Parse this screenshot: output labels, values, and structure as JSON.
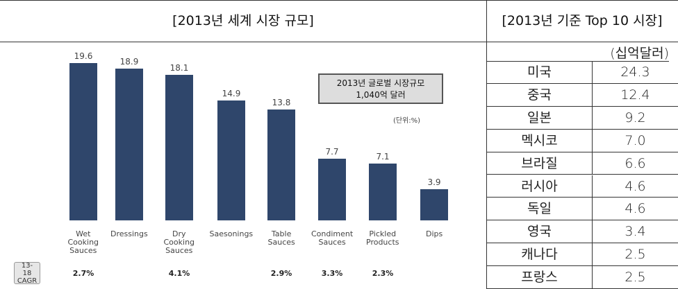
{
  "chart_data": {
    "type": "bar",
    "title": "[2013년 세계 시장 규모]",
    "categories": [
      "Wet Cooking Sauces",
      "Dressings",
      "Dry Cooking Sauces",
      "Saesonings",
      "Table Sauces",
      "Condiment Sauces",
      "Pickled Products",
      "Dips"
    ],
    "values": [
      19.6,
      18.9,
      18.1,
      14.9,
      13.8,
      7.7,
      7.1,
      3.9
    ],
    "color": "#2f466b",
    "annotation": [
      "2013년 글로벌 시장규모",
      "1,040억 달러"
    ],
    "unit_note": "(단위:%)",
    "cagr_label": "13-18 CAGR",
    "cagr": [
      "2.7%",
      null,
      "4.1%",
      null,
      "2.9%",
      "3.3%",
      "2.3%",
      null
    ]
  },
  "table": {
    "title": "[2013년 기준 Top 10 시장]",
    "unit": "(십억달러)",
    "rows": [
      [
        "미국",
        "24.3"
      ],
      [
        "중국",
        "12.4"
      ],
      [
        "일본",
        "9.2"
      ],
      [
        "멕시코",
        "7.0"
      ],
      [
        "브라질",
        "6.6"
      ],
      [
        "러시아",
        "4.6"
      ],
      [
        "독일",
        "4.6"
      ],
      [
        "영국",
        "3.4"
      ],
      [
        "캐나다",
        "2.5"
      ],
      [
        "프랑스",
        "2.5"
      ]
    ]
  }
}
